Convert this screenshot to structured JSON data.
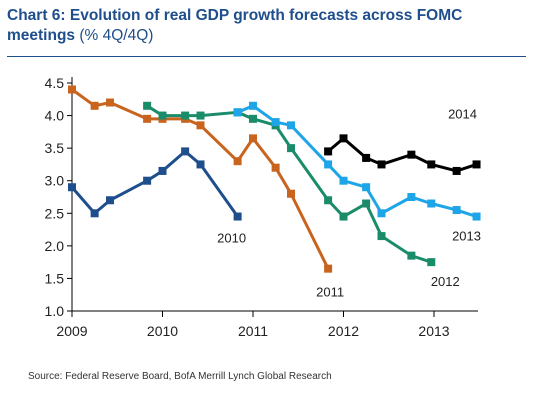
{
  "title": {
    "main": "Chart 6: Evolution of real GDP growth forecasts across FOMC meetings",
    "unit": "(% 4Q/4Q)"
  },
  "source": "Source: Federal Reserve Board, BofA Merrill Lynch Global Research",
  "chart_data": {
    "type": "line",
    "title": "Chart 6: Evolution of real GDP growth forecasts across FOMC meetings (% 4Q/4Q)",
    "xlabel": "",
    "ylabel": "",
    "xlim": [
      2009,
      2013.5
    ],
    "ylim": [
      1.0,
      4.5
    ],
    "x_ticks": [
      "2009",
      "2010",
      "2011",
      "2012",
      "2013"
    ],
    "y_ticks": [
      "1.0",
      "1.5",
      "2.0",
      "2.5",
      "3.0",
      "3.5",
      "4.0",
      "4.5"
    ],
    "grid": false,
    "legend": "inline labels",
    "series": [
      {
        "name": "2010",
        "color": "#1f4e8c",
        "label_at": "end",
        "x": [
          2009.0,
          2009.25,
          2009.42,
          2009.83,
          2010.0,
          2010.25,
          2010.42,
          2010.83
        ],
        "y": [
          2.9,
          2.5,
          2.7,
          3.0,
          3.15,
          3.45,
          3.25,
          2.45
        ]
      },
      {
        "name": "2011",
        "color": "#c8641e",
        "label_at": "end",
        "x": [
          2009.0,
          2009.25,
          2009.42,
          2009.83,
          2010.0,
          2010.25,
          2010.42,
          2010.83,
          2011.0,
          2011.25,
          2011.42,
          2011.83
        ],
        "y": [
          4.4,
          4.15,
          4.2,
          3.95,
          3.95,
          3.95,
          3.85,
          3.3,
          3.65,
          3.2,
          2.8,
          1.65
        ]
      },
      {
        "name": "2012",
        "color": "#1a8c6a",
        "label_at": "end",
        "x": [
          2009.83,
          2010.0,
          2010.25,
          2010.42,
          2010.83,
          2011.0,
          2011.25,
          2011.42,
          2011.83,
          2012.0,
          2012.25,
          2012.42,
          2012.75,
          2012.97
        ],
        "y": [
          4.15,
          4.0,
          4.0,
          4.0,
          4.05,
          3.95,
          3.85,
          3.5,
          2.7,
          2.45,
          2.65,
          2.15,
          1.85,
          1.75
        ]
      },
      {
        "name": "2013",
        "color": "#1ea5e8",
        "label_at": "end",
        "x": [
          2010.83,
          2011.0,
          2011.25,
          2011.42,
          2011.83,
          2012.0,
          2012.25,
          2012.42,
          2012.75,
          2012.97,
          2013.25,
          2013.47
        ],
        "y": [
          4.05,
          4.15,
          3.9,
          3.85,
          3.25,
          3.0,
          2.9,
          2.5,
          2.75,
          2.65,
          2.55,
          2.45
        ]
      },
      {
        "name": "2014",
        "color": "#000000",
        "label_at": "end",
        "x": [
          2011.83,
          2012.0,
          2012.25,
          2012.42,
          2012.75,
          2012.97,
          2013.25,
          2013.47
        ],
        "y": [
          3.45,
          3.65,
          3.35,
          3.25,
          3.4,
          3.25,
          3.15,
          3.25
        ]
      }
    ]
  }
}
